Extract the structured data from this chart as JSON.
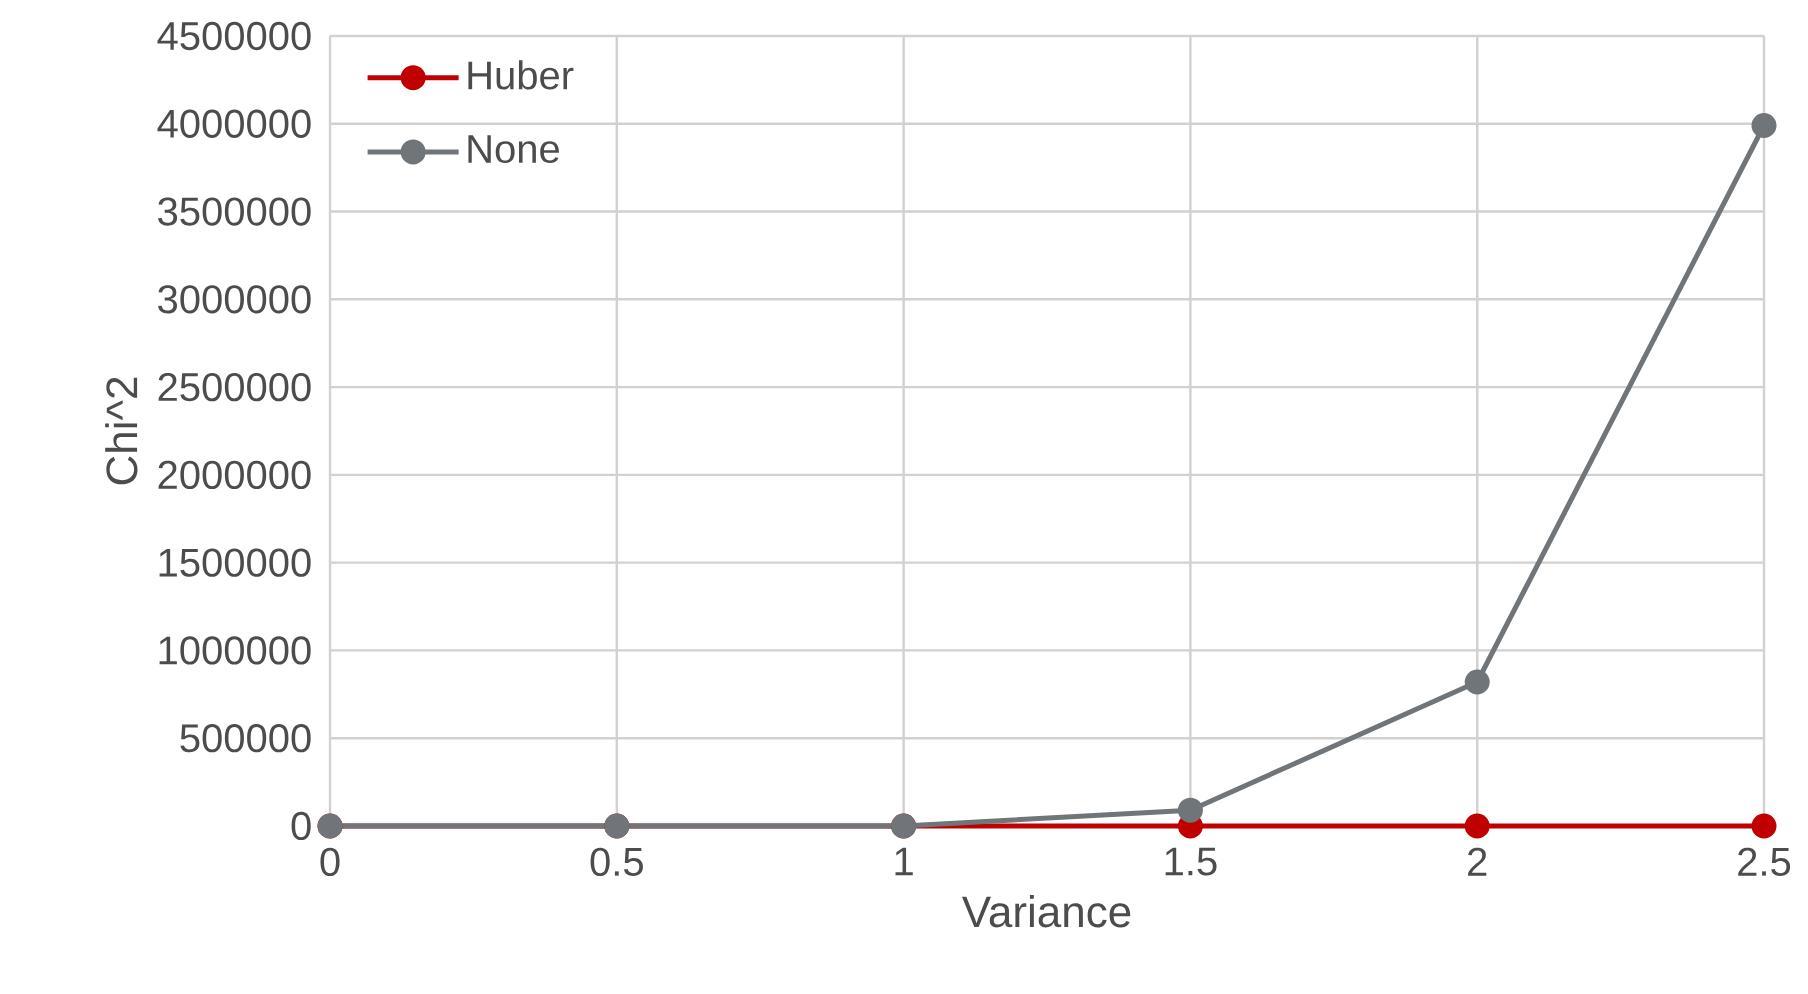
{
  "chart_data": {
    "type": "line",
    "xlabel": "Variance",
    "ylabel": "Chi^2",
    "x": [
      0,
      0.5,
      1,
      1.5,
      2,
      2.5
    ],
    "series": [
      {
        "name": "Huber",
        "color": "#c00000",
        "values": [
          0,
          0,
          0,
          0,
          0,
          0
        ]
      },
      {
        "name": "None",
        "color": "#70757a",
        "values": [
          0,
          0,
          0,
          90000,
          820000,
          3990000
        ]
      }
    ],
    "xlim": [
      0,
      2.5
    ],
    "xticks": [
      0,
      0.5,
      1,
      1.5,
      2,
      2.5
    ],
    "ylim": [
      0,
      4500000
    ],
    "yticks": [
      0,
      500000,
      1000000,
      1500000,
      2000000,
      2500000,
      3000000,
      3500000,
      4000000,
      4500000
    ],
    "grid": true,
    "legend": "top left",
    "marker": "circle",
    "line_style": "solid"
  }
}
